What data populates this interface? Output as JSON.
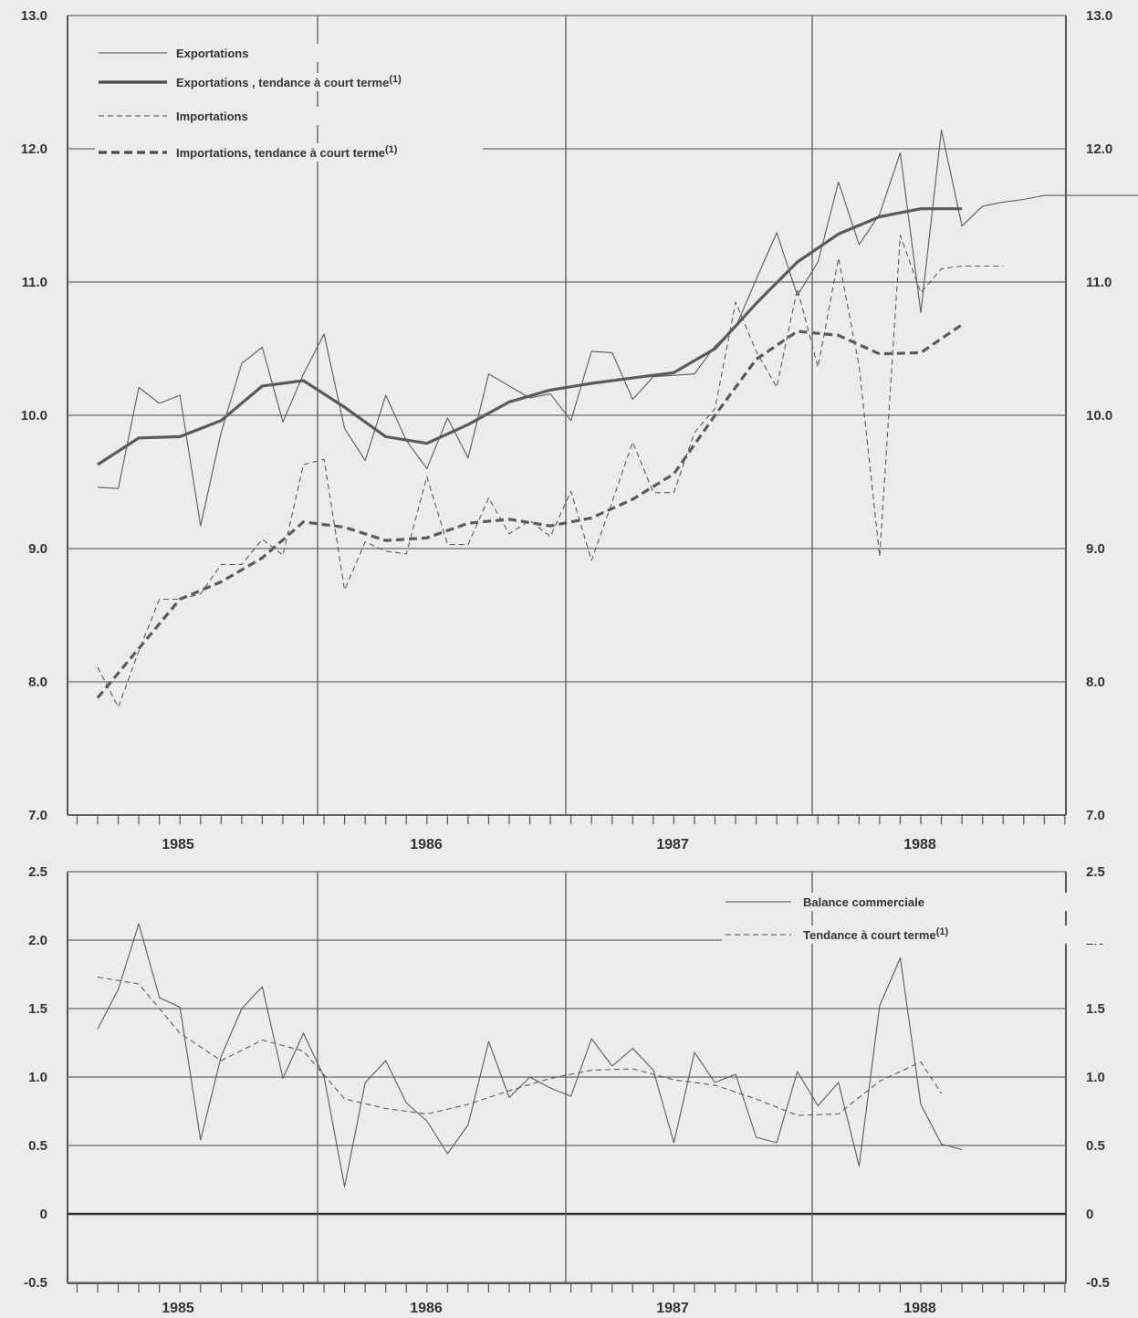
{
  "chart_data": [
    {
      "type": "line",
      "x_tick_labels": [
        "1985",
        "1986",
        "1987",
        "1988"
      ],
      "ylim": [
        7.0,
        13.0
      ],
      "y_ticks": [
        "7.0",
        "8.0",
        "9.0",
        "10.0",
        "11.0",
        "12.0",
        "13.0"
      ],
      "grid": true,
      "legend_position": "top-left",
      "colors": {
        "line": "#5a5a5a",
        "trend": "#4a4a4a",
        "grid": "#6a6a6a"
      },
      "x_months": [
        0,
        1,
        2,
        3,
        4,
        5,
        6,
        7,
        8,
        9,
        10,
        11,
        12,
        13,
        14,
        15,
        16,
        17,
        18,
        19,
        20,
        21,
        22,
        23,
        24,
        25,
        26,
        27,
        28,
        29,
        30,
        31,
        32,
        33,
        34,
        35,
        36,
        37,
        38,
        39,
        40,
        41,
        42,
        43,
        44,
        45,
        46,
        47,
        48,
        49,
        50,
        51,
        52,
        53,
        54,
        55,
        56,
        57,
        58,
        59,
        60,
        61,
        62,
        63,
        64,
        65,
        66,
        67,
        68,
        69,
        70,
        71,
        72,
        73,
        74,
        75,
        76,
        77,
        78,
        79,
        80,
        81,
        82,
        83,
        84,
        85,
        86,
        87,
        88,
        89,
        90,
        91,
        92,
        93,
        94,
        95,
        96,
        97,
        98,
        99,
        100
      ],
      "series": [
        {
          "name": "Exportations",
          "style": "thin-solid",
          "x": [
            0,
            1,
            2,
            3,
            4,
            5,
            6,
            7,
            8,
            9,
            10,
            11,
            12,
            13,
            14,
            15,
            16,
            17,
            18,
            19,
            20,
            21,
            22,
            23,
            24,
            25,
            26,
            27,
            28,
            29,
            30,
            31,
            32,
            33,
            34,
            35,
            36,
            37,
            38,
            39,
            40,
            41,
            42,
            43,
            44,
            45,
            46,
            47,
            48,
            49,
            50,
            51,
            52,
            53,
            54,
            55,
            56,
            57,
            58,
            59,
            60,
            61,
            62,
            63,
            64,
            65,
            66,
            67,
            68,
            69
          ],
          "values": [
            9.46,
            9.45,
            10.21,
            10.09,
            10.15,
            9.17,
            9.87,
            10.39,
            10.51,
            9.95,
            10.31,
            10.61,
            9.9,
            9.66,
            10.15,
            9.81,
            9.6,
            9.98,
            9.68,
            10.31,
            10.22,
            10.13,
            10.16,
            9.96,
            10.48,
            10.47,
            10.12,
            10.29,
            10.3,
            10.31,
            10.52,
            10.66,
            11.02,
            11.37,
            10.9,
            11.15,
            11.75,
            11.28,
            11.51,
            11.97,
            10.77,
            12.14,
            11.42,
            11.57,
            11.6,
            11.62,
            11.65,
            11.65,
            11.65,
            11.65,
            11.65,
            11.65,
            11.65,
            11.65,
            11.65,
            11.65,
            11.65,
            11.65,
            11.65,
            11.65,
            11.65,
            11.65,
            11.65,
            11.65,
            11.65,
            11.65,
            11.65,
            11.65,
            11.65,
            11.65
          ]
        },
        {
          "name": "Exportations , tendance à court terme",
          "style": "thick-solid",
          "x": [
            0,
            2,
            4,
            6,
            8,
            10,
            12,
            14,
            16,
            18,
            20,
            22,
            24,
            26,
            28,
            30,
            32,
            34,
            36,
            38,
            40,
            42
          ],
          "values": [
            9.63,
            9.83,
            9.84,
            9.96,
            10.22,
            10.26,
            10.06,
            9.84,
            9.79,
            9.93,
            10.1,
            10.19,
            10.24,
            10.28,
            10.32,
            10.5,
            10.84,
            11.15,
            11.36,
            11.49,
            11.55,
            11.55
          ]
        },
        {
          "name": "Importations",
          "style": "thin-dashed",
          "x": [
            0,
            1,
            2,
            3,
            4,
            5,
            6,
            7,
            8,
            9,
            10,
            11,
            12,
            13,
            14,
            15,
            16,
            17,
            18,
            19,
            20,
            21,
            22,
            23,
            24,
            25,
            26,
            27,
            28,
            29,
            30,
            31,
            32,
            33,
            34,
            35,
            36,
            37,
            38,
            39,
            40,
            41,
            42,
            43,
            44
          ],
          "values": [
            8.11,
            7.81,
            8.23,
            8.62,
            8.62,
            8.66,
            8.88,
            8.88,
            9.07,
            8.95,
            9.63,
            9.67,
            8.69,
            9.05,
            8.98,
            8.96,
            9.54,
            9.03,
            9.03,
            9.38,
            9.11,
            9.21,
            9.09,
            9.43,
            8.91,
            9.35,
            9.8,
            9.42,
            9.42,
            9.87,
            10.05,
            10.85,
            10.48,
            10.21,
            10.95,
            10.36,
            11.18,
            10.37,
            8.94,
            11.35,
            10.92,
            11.1,
            11.12,
            11.12,
            11.12
          ]
        },
        {
          "name": "Importations, tendance à court terme",
          "style": "thick-dashed",
          "x": [
            0,
            2,
            4,
            6,
            8,
            10,
            12,
            14,
            16,
            18,
            20,
            22,
            24,
            26,
            28,
            30,
            32,
            34,
            36,
            38,
            40,
            42
          ],
          "values": [
            7.88,
            8.25,
            8.62,
            8.75,
            8.93,
            9.2,
            9.16,
            9.06,
            9.08,
            9.19,
            9.22,
            9.17,
            9.23,
            9.37,
            9.56,
            10.0,
            10.42,
            10.63,
            10.6,
            10.46,
            10.47,
            10.68
          ]
        }
      ]
    },
    {
      "type": "line",
      "x_tick_labels": [
        "1985",
        "1986",
        "1987",
        "1988"
      ],
      "ylim": [
        -0.5,
        2.5
      ],
      "y_ticks": [
        "-0.5",
        "0",
        "0.5",
        "1.0",
        "1.5",
        "2.0",
        "2.5"
      ],
      "grid": true,
      "legend_position": "top-right",
      "series": [
        {
          "name": "Balance commerciale",
          "style": "thin-solid",
          "x": [
            0,
            1,
            2,
            3,
            4,
            5,
            6,
            7,
            8,
            9,
            10,
            11,
            12,
            13,
            14,
            15,
            16,
            17,
            18,
            19,
            20,
            21,
            22,
            23,
            24,
            25,
            26,
            27,
            28,
            29,
            30,
            31,
            32,
            33,
            34,
            35,
            36,
            37,
            38,
            39,
            40,
            41,
            42
          ],
          "values": [
            1.35,
            1.64,
            2.12,
            1.58,
            1.51,
            0.54,
            1.15,
            1.5,
            1.66,
            0.99,
            1.32,
            1.0,
            0.2,
            0.96,
            1.12,
            0.81,
            0.68,
            0.44,
            0.65,
            1.26,
            0.85,
            1.0,
            0.92,
            0.86,
            1.28,
            1.08,
            1.21,
            1.05,
            0.52,
            1.18,
            0.96,
            1.02,
            0.56,
            0.52,
            1.04,
            0.79,
            0.96,
            0.35,
            1.52,
            1.87,
            0.8,
            0.51,
            0.47
          ]
        },
        {
          "name": "Tendance à court terme",
          "style": "thin-dashed",
          "x": [
            0,
            2,
            4,
            6,
            8,
            10,
            12,
            14,
            16,
            18,
            20,
            22,
            24,
            26,
            28,
            30,
            32,
            34,
            36,
            38,
            40,
            41
          ],
          "values": [
            1.73,
            1.68,
            1.32,
            1.12,
            1.27,
            1.19,
            0.84,
            0.77,
            0.73,
            0.8,
            0.9,
            0.99,
            1.05,
            1.06,
            0.98,
            0.94,
            0.84,
            0.72,
            0.73,
            0.97,
            1.11,
            0.88
          ]
        }
      ]
    }
  ],
  "legend_top": [
    {
      "label": "Exportations",
      "sup": ""
    },
    {
      "label": "Exportations , tendance à court terme",
      "sup": "(1)"
    },
    {
      "label": "Importations",
      "sup": ""
    },
    {
      "label": "Importations, tendance à court terme",
      "sup": "(1)"
    }
  ],
  "legend_bottom": [
    {
      "label": "Balance commerciale",
      "sup": ""
    },
    {
      "label": "Tendance à court terme",
      "sup": "(1)"
    }
  ]
}
